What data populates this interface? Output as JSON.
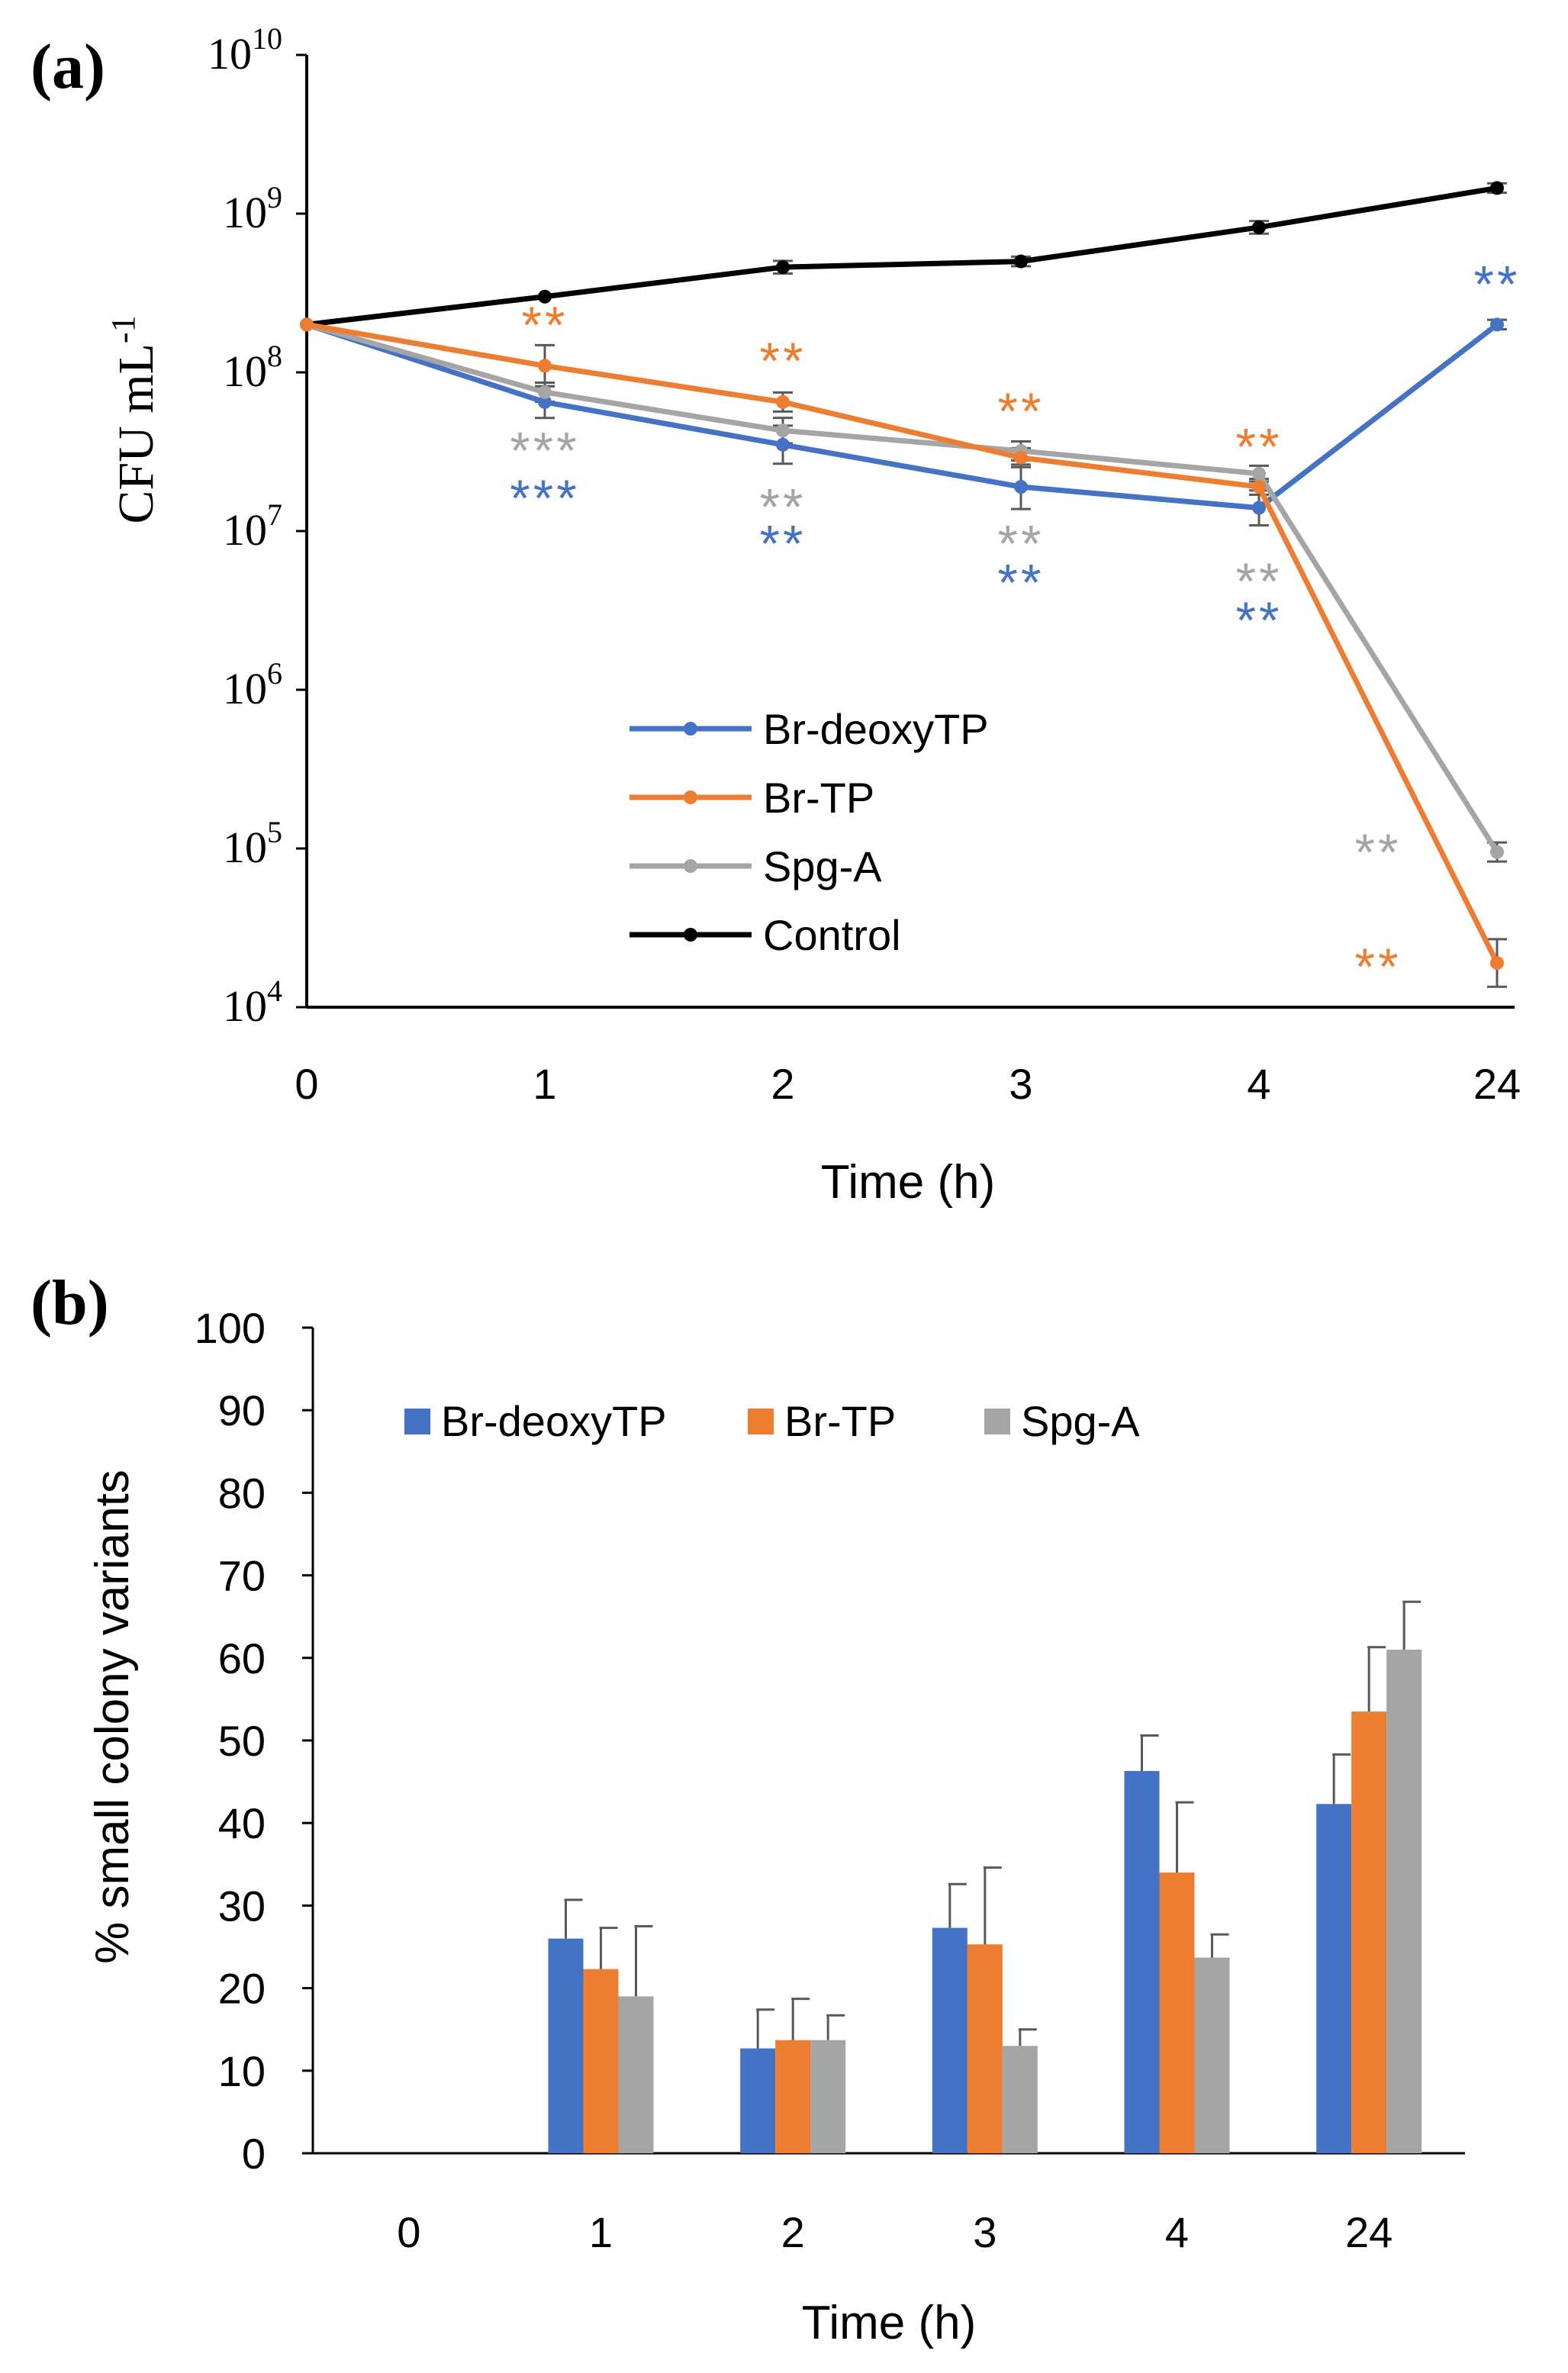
{
  "colors": {
    "Br-deoxyTP": "#4472C4",
    "Br-TP": "#ED7D31",
    "Spg-A": "#A5A5A5",
    "Control": "#000000",
    "axis": "#000000",
    "errorbar": "#595959"
  },
  "chart_data": [
    {
      "panel_label": "(a)",
      "type": "line",
      "yscale": "log",
      "ylim_exp": [
        4,
        10
      ],
      "ylabel": "CFU mL",
      "ylabel_sup": "-1",
      "xlabel": "Time (h)",
      "categories": [
        "0",
        "1",
        "2",
        "3",
        "4",
        "24"
      ],
      "y_ticks": [
        {
          "base": "10",
          "exp": "4"
        },
        {
          "base": "10",
          "exp": "5"
        },
        {
          "base": "10",
          "exp": "6"
        },
        {
          "base": "10",
          "exp": "7"
        },
        {
          "base": "10",
          "exp": "8"
        },
        {
          "base": "10",
          "exp": "9"
        },
        {
          "base": "10",
          "exp": "10"
        }
      ],
      "legend": {
        "position": "center-left",
        "entries": [
          "Br-deoxyTP",
          "Br-TP",
          "Spg-A",
          "Control"
        ]
      },
      "series": [
        {
          "name": "Br-deoxyTP",
          "values": [
            200000000.0,
            65000000.0,
            35000000.0,
            19000000.0,
            14000000.0,
            200000000.0
          ],
          "err_log": [
            0,
            0.1,
            0.12,
            0.14,
            0.11,
            0.03
          ]
        },
        {
          "name": "Br-TP",
          "values": [
            200000000.0,
            110000000.0,
            65000000.0,
            29000000.0,
            19000000.0,
            19000.0
          ],
          "err_log": [
            0,
            0.13,
            0.06,
            0.06,
            0.05,
            0.15
          ]
        },
        {
          "name": "Spg-A",
          "values": [
            200000000.0,
            75000000.0,
            43000000.0,
            32000000.0,
            23000000.0,
            95000.0
          ],
          "err_log": [
            0,
            0.06,
            0.08,
            0.06,
            0.05,
            0.06
          ]
        },
        {
          "name": "Control",
          "values": [
            200000000.0,
            300000000.0,
            460000000.0,
            500000000.0,
            820000000.0,
            1450000000.0
          ],
          "err_log": [
            0,
            0,
            0.04,
            0.03,
            0.04,
            0.03
          ]
        }
      ],
      "annotations": [
        {
          "text": "**",
          "series": "Br-TP",
          "x": 1,
          "at": 210000000.0
        },
        {
          "text": "**",
          "series": "Br-TP",
          "x": 2,
          "at": 125000000.0
        },
        {
          "text": "**",
          "series": "Br-TP",
          "x": 3,
          "at": 60000000.0
        },
        {
          "text": "**",
          "series": "Br-TP",
          "x": 4,
          "at": 36000000.0
        },
        {
          "text": "***",
          "series": "Spg-A",
          "x": 1,
          "at": 34000000.0
        },
        {
          "text": "***",
          "series": "Br-deoxyTP",
          "x": 1,
          "at": 17000000.0
        },
        {
          "text": "**",
          "series": "Spg-A",
          "x": 2,
          "at": 15000000.0
        },
        {
          "text": "**",
          "series": "Br-deoxyTP",
          "x": 2,
          "at": 8800000.0
        },
        {
          "text": "**",
          "series": "Spg-A",
          "x": 3,
          "at": 8800000.0
        },
        {
          "text": "**",
          "series": "Br-deoxyTP",
          "x": 3,
          "at": 5000000.0
        },
        {
          "text": "**",
          "series": "Spg-A",
          "x": 4,
          "at": 5100000.0
        },
        {
          "text": "**",
          "series": "Br-deoxyTP",
          "x": 4,
          "at": 2900000.0
        },
        {
          "text": "**",
          "series": "Br-deoxyTP",
          "x": 5,
          "at": 380000000.0
        },
        {
          "text": "**",
          "series": "Spg-A",
          "x": 4.5,
          "at": 100000.0
        },
        {
          "text": "**",
          "series": "Br-TP",
          "x": 4.5,
          "at": 19000.0
        }
      ]
    },
    {
      "panel_label": "(b)",
      "type": "bar",
      "ylabel": "% small colony variants",
      "xlabel": "Time (h)",
      "categories": [
        "0",
        "1",
        "2",
        "3",
        "4",
        "24"
      ],
      "ylim": [
        0,
        100
      ],
      "yticks": [
        "0",
        "10",
        "20",
        "30",
        "40",
        "50",
        "60",
        "70",
        "80",
        "90",
        "100"
      ],
      "legend": {
        "position": "top-left",
        "entries": [
          "Br-deoxyTP",
          "Br-TP",
          "Spg-A"
        ]
      },
      "series": [
        {
          "name": "Br-deoxyTP",
          "values": [
            0,
            26,
            12.7,
            27.3,
            46.3,
            42.3
          ],
          "errors": [
            0,
            4.7,
            4.7,
            5.3,
            4.3,
            6.0
          ]
        },
        {
          "name": "Br-TP",
          "values": [
            0,
            22.3,
            13.7,
            25.3,
            34,
            53.5
          ],
          "errors": [
            0,
            5.0,
            5.0,
            9.3,
            8.5,
            7.8
          ]
        },
        {
          "name": "Spg-A",
          "values": [
            0,
            19,
            13.7,
            13,
            23.7,
            61
          ],
          "errors": [
            0,
            8.5,
            3.0,
            2.0,
            2.8,
            5.8
          ]
        }
      ]
    }
  ]
}
